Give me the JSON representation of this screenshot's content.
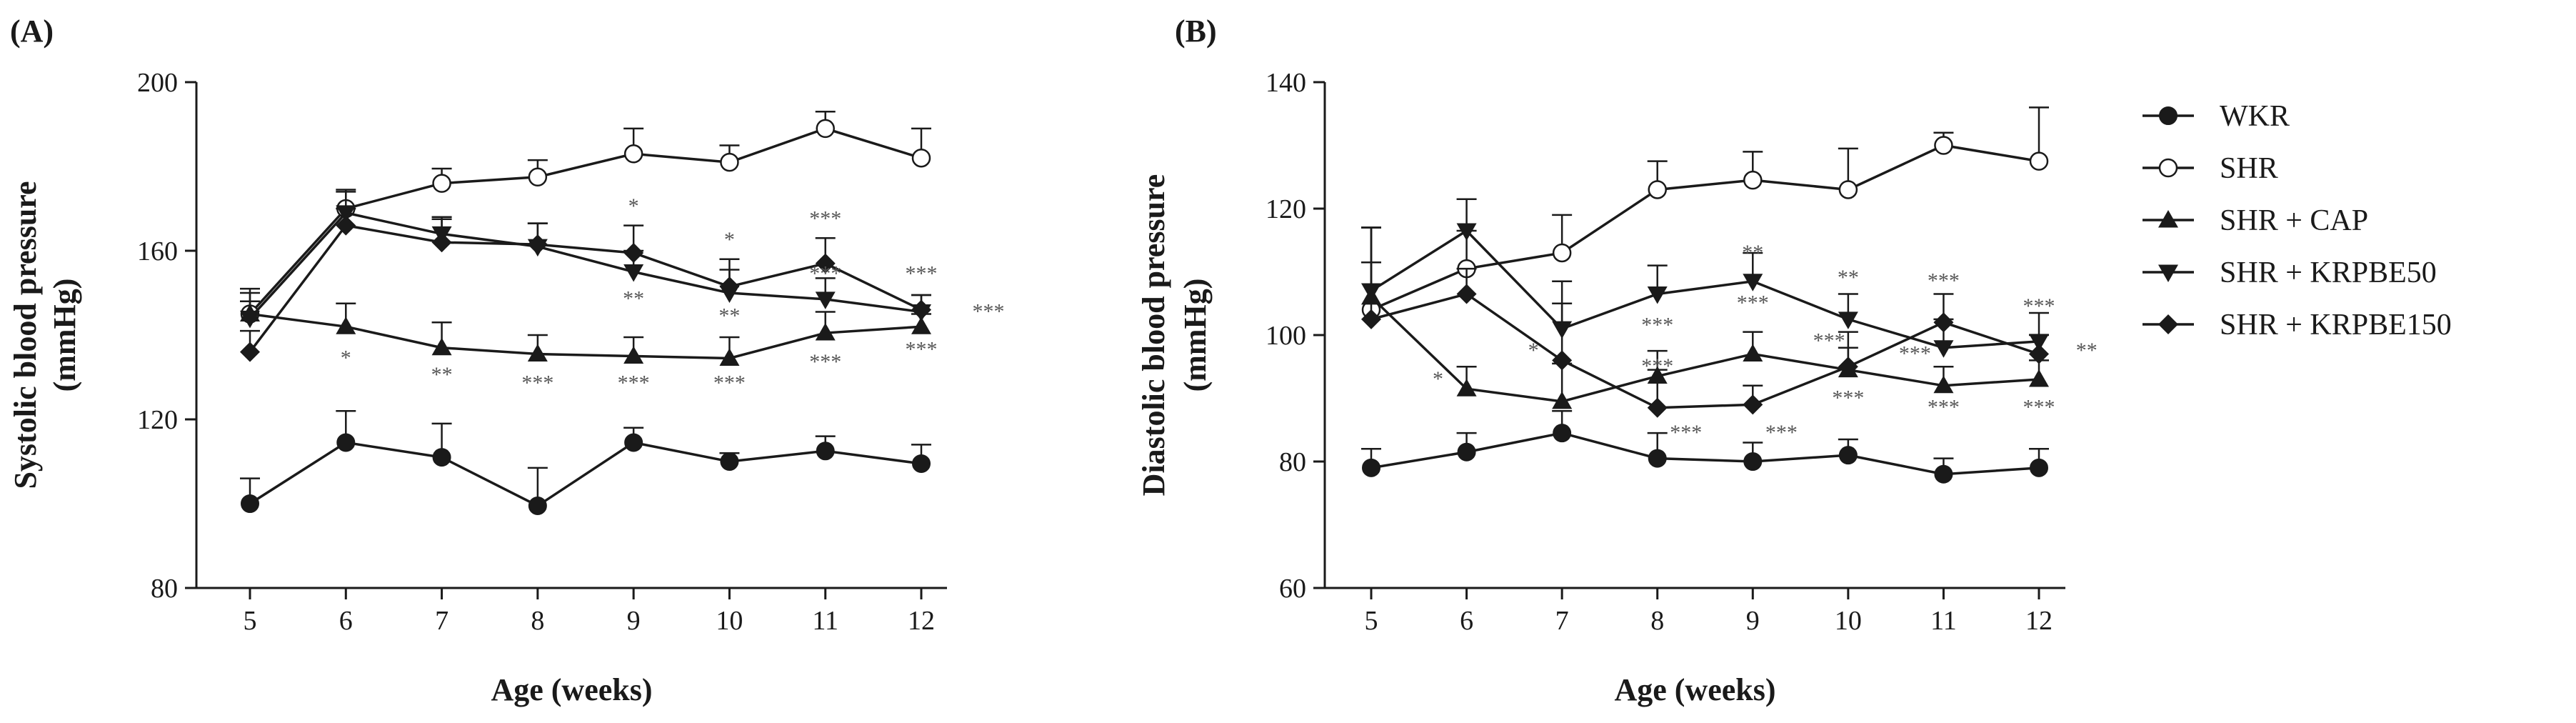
{
  "chart_data": [
    {
      "id": "A",
      "panel_label": "(A)",
      "type": "line",
      "title": "",
      "xlabel": "Age (weeks)",
      "ylabel_line1": "Systolic blood pressure",
      "ylabel_line2": "(mmHg)",
      "x": [
        5,
        6,
        7,
        8,
        9,
        10,
        11,
        12
      ],
      "x_tick_labels": [
        "5",
        "6",
        "7",
        "8",
        "9",
        "10",
        "11",
        "12"
      ],
      "ylim": [
        80,
        200
      ],
      "y_ticks": [
        80,
        120,
        160,
        200
      ],
      "y_tick_labels": [
        "80",
        "120",
        "160",
        "200"
      ],
      "grid": false,
      "series": [
        {
          "name": "WKR",
          "marker": "circle-filled",
          "values": [
            100,
            114.5,
            111,
            99.5,
            114.5,
            110,
            112.5,
            109.5
          ],
          "errors": [
            6,
            7.5,
            8,
            9,
            3.5,
            2,
            3.5,
            4.5
          ]
        },
        {
          "name": "SHR",
          "marker": "circle-open",
          "values": [
            145,
            170,
            176,
            177.5,
            183,
            181,
            189,
            182
          ],
          "errors": [
            6,
            4.5,
            3.5,
            4,
            6,
            4,
            4,
            7
          ]
        },
        {
          "name": "SHR + CAP",
          "marker": "triangle-up",
          "values": [
            145,
            142,
            137,
            135.5,
            135,
            134.5,
            140.5,
            142
          ],
          "errors": [
            5,
            5.5,
            6,
            4.5,
            4.5,
            5,
            5,
            3
          ]
        },
        {
          "name": "SHR + KRPBE50",
          "marker": "triangle-down",
          "values": [
            144,
            169,
            164,
            161,
            155,
            150,
            148.5,
            145.5
          ],
          "errors": [
            4,
            5,
            4,
            5.5,
            5,
            5.5,
            5,
            4
          ]
        },
        {
          "name": "SHR + KRPBE150",
          "marker": "diamond",
          "values": [
            136,
            166,
            162,
            161.5,
            159.5,
            151.5,
            157,
            146
          ],
          "errors": [
            5,
            4,
            5.5,
            5,
            6.5,
            6.5,
            6,
            3.5
          ]
        }
      ],
      "annotations": [
        {
          "text": "*",
          "x": 6,
          "y": 133
        },
        {
          "text": "**",
          "x": 7,
          "y": 129
        },
        {
          "text": "***",
          "x": 8,
          "y": 127
        },
        {
          "text": "***",
          "x": 9,
          "y": 127
        },
        {
          "text": "***",
          "x": 10,
          "y": 127
        },
        {
          "text": "***",
          "x": 11,
          "y": 132
        },
        {
          "text": "***",
          "x": 12,
          "y": 135
        },
        {
          "text": "*",
          "x": 9,
          "y": 169
        },
        {
          "text": "**",
          "x": 9,
          "y": 147
        },
        {
          "text": "*",
          "x": 10,
          "y": 161
        },
        {
          "text": "**",
          "x": 10,
          "y": 143
        },
        {
          "text": "***",
          "x": 11,
          "y": 166
        },
        {
          "text": "***",
          "x": 11,
          "y": 153
        },
        {
          "text": "***",
          "x": 12,
          "y": 153
        },
        {
          "text": "***",
          "x": 12.7,
          "y": 144
        }
      ]
    },
    {
      "id": "B",
      "panel_label": "(B)",
      "type": "line",
      "title": "",
      "xlabel": "Age (weeks)",
      "ylabel_line1": "Diastolic blood pressure",
      "ylabel_line2": "(mmHg)",
      "x": [
        5,
        6,
        7,
        8,
        9,
        10,
        11,
        12
      ],
      "x_tick_labels": [
        "5",
        "6",
        "7",
        "8",
        "9",
        "10",
        "11",
        "12"
      ],
      "ylim": [
        60,
        140
      ],
      "y_ticks": [
        60,
        80,
        100,
        120,
        140
      ],
      "y_tick_labels": [
        "60",
        "80",
        "100",
        "120",
        "140"
      ],
      "grid": false,
      "series": [
        {
          "name": "WKR",
          "marker": "circle-filled",
          "values": [
            79,
            81.5,
            84.5,
            80.5,
            80,
            81,
            78,
            79
          ],
          "errors": [
            3,
            3,
            3.5,
            4,
            3,
            2.5,
            2.5,
            3
          ]
        },
        {
          "name": "SHR",
          "marker": "circle-open",
          "values": [
            104,
            110.5,
            113,
            123,
            124.5,
            123,
            130,
            127.5
          ],
          "errors": [
            13,
            6,
            6,
            4.5,
            4.5,
            6.5,
            2,
            8.5
          ]
        },
        {
          "name": "SHR + CAP",
          "marker": "triangle-up",
          "values": [
            106,
            91.5,
            89.5,
            93.5,
            97,
            94.5,
            92,
            93
          ],
          "errors": [
            11,
            3.5,
            6,
            4,
            3.5,
            3.5,
            3,
            3
          ]
        },
        {
          "name": "SHR + KRPBE50",
          "marker": "triangle-down",
          "values": [
            107,
            116.5,
            101,
            106.5,
            108.5,
            102.5,
            98,
            99
          ],
          "errors": [
            10,
            5,
            7.5,
            4.5,
            4.5,
            4,
            4.5,
            4.5
          ]
        },
        {
          "name": "SHR + KRPBE150",
          "marker": "diamond",
          "values": [
            102.5,
            106.5,
            96,
            88.5,
            89,
            95,
            102,
            97
          ],
          "errors": [
            9,
            4,
            9,
            6,
            3,
            5.5,
            4.5,
            3
          ]
        }
      ],
      "annotations": [
        {
          "text": "*",
          "x": 5.7,
          "y": 92
        },
        {
          "text": "*",
          "x": 6.7,
          "y": 96.5
        },
        {
          "text": "***",
          "x": 8,
          "y": 100.5
        },
        {
          "text": "***",
          "x": 8,
          "y": 94
        },
        {
          "text": "***",
          "x": 8.3,
          "y": 83.5
        },
        {
          "text": "**",
          "x": 9,
          "y": 112
        },
        {
          "text": "***",
          "x": 9,
          "y": 104
        },
        {
          "text": "***",
          "x": 9.3,
          "y": 83.5
        },
        {
          "text": "**",
          "x": 10,
          "y": 108
        },
        {
          "text": "***",
          "x": 9.8,
          "y": 98
        },
        {
          "text": "***",
          "x": 10,
          "y": 89
        },
        {
          "text": "***",
          "x": 11,
          "y": 107.5
        },
        {
          "text": "***",
          "x": 10.7,
          "y": 96
        },
        {
          "text": "***",
          "x": 11,
          "y": 87.5
        },
        {
          "text": "***",
          "x": 12,
          "y": 103.5
        },
        {
          "text": "**",
          "x": 12.5,
          "y": 96.5
        },
        {
          "text": "***",
          "x": 12,
          "y": 87.5
        }
      ]
    }
  ],
  "legend": {
    "placement": "right",
    "entries": [
      {
        "label": "WKR",
        "marker": "circle-filled"
      },
      {
        "label": "SHR",
        "marker": "circle-open"
      },
      {
        "label": "SHR + CAP",
        "marker": "triangle-up"
      },
      {
        "label": "SHR + KRPBE50",
        "marker": "triangle-down"
      },
      {
        "label": "SHR + KRPBE150",
        "marker": "diamond"
      }
    ]
  },
  "colors": {
    "ink": "#1a1a1a",
    "annotation": "#555555",
    "background": "#ffffff"
  }
}
